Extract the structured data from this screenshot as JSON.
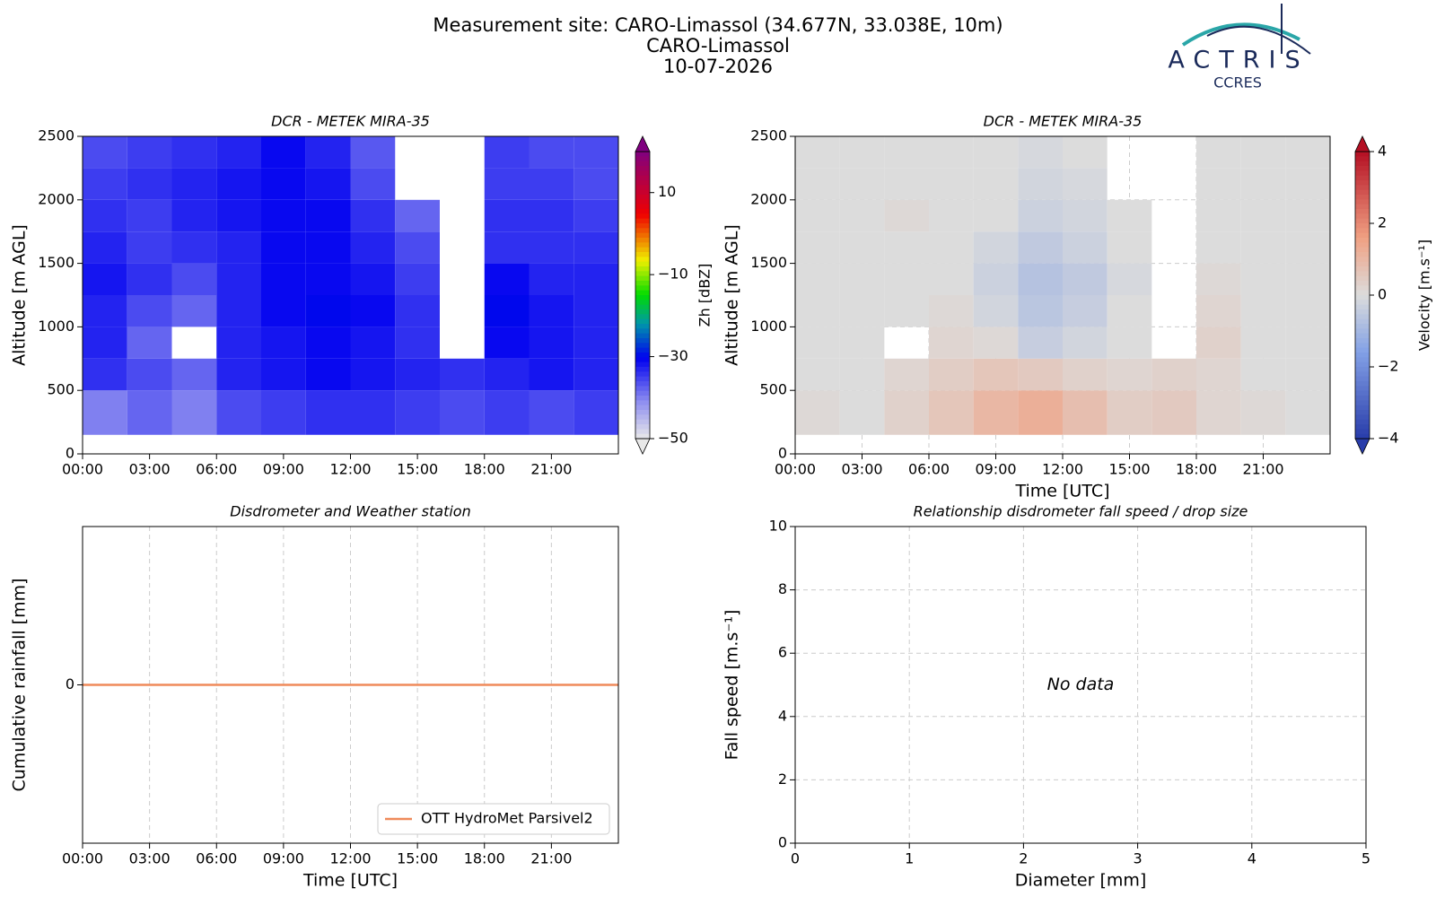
{
  "header": {
    "title_lines": [
      "Measurement site: CARO-Limassol (34.677N, 33.038E, 10m)",
      "CARO-Limassol",
      "10-07-2026"
    ],
    "logo": "ACTRIS",
    "logo_subtitle": "CCRES"
  },
  "chart_data": [
    {
      "type": "heatmap",
      "title": "DCR - METEK MIRA-35",
      "ylabel": "Altitude [m AGL]",
      "xlim": [
        0,
        24
      ],
      "xticks": [
        {
          "value": 0,
          "label": "00:00"
        },
        {
          "value": 3,
          "label": "03:00"
        },
        {
          "value": 6,
          "label": "06:00"
        },
        {
          "value": 9,
          "label": "09:00"
        },
        {
          "value": 12,
          "label": "12:00"
        },
        {
          "value": 15,
          "label": "15:00"
        },
        {
          "value": 18,
          "label": "18:00"
        },
        {
          "value": 21,
          "label": "21:00"
        }
      ],
      "ylim": [
        0,
        2500
      ],
      "yticks": [
        0,
        500,
        1000,
        1500,
        2000,
        2500
      ],
      "grid": false,
      "x_edges": [
        0,
        2,
        4,
        6,
        8,
        10,
        12,
        14,
        16,
        18,
        20,
        22,
        24
      ],
      "y_edges": [
        150,
        500,
        750,
        1000,
        1250,
        1500,
        1750,
        2000,
        2250,
        2500
      ],
      "z": [
        [
          -40,
          -38,
          -40,
          -36,
          -35,
          -34,
          -34,
          -35,
          -36,
          -35,
          -36,
          -35
        ],
        [
          -34,
          -36,
          -38,
          -33,
          -32,
          -31,
          -32,
          -33,
          -34,
          -33,
          -32,
          -33
        ],
        [
          -33,
          -38,
          null,
          -33,
          -32,
          -31,
          -32,
          -34,
          null,
          -31,
          -32,
          -33
        ],
        [
          -33,
          -36,
          -38,
          -33,
          -31,
          -30,
          -31,
          -34,
          null,
          -30,
          -32,
          -33
        ],
        [
          -32,
          -34,
          -36,
          -33,
          -31,
          -31,
          -32,
          -35,
          null,
          -31,
          -33,
          -33
        ],
        [
          -33,
          -35,
          -34,
          -33,
          -31,
          -31,
          -33,
          -36,
          null,
          -34,
          -34,
          -34
        ],
        [
          -34,
          -35,
          -33,
          -32,
          -31,
          -31,
          -34,
          -38,
          null,
          -34,
          -34,
          -35
        ],
        [
          -35,
          -34,
          -33,
          -32,
          -31,
          -32,
          -36,
          null,
          null,
          -35,
          -35,
          -36
        ],
        [
          -36,
          -35,
          -34,
          -33,
          -31,
          -33,
          -37,
          null,
          null,
          -35,
          -36,
          -36
        ]
      ],
      "colorbar": {
        "label": "Zh [dBZ]",
        "lim": [
          -50,
          20
        ],
        "ticks": [
          {
            "value": -50,
            "label": "−50"
          },
          {
            "value": -30,
            "label": "−30"
          },
          {
            "value": -10,
            "label": "−10"
          },
          10
        ],
        "colormap": "rainbow"
      }
    },
    {
      "type": "heatmap",
      "title": "DCR - METEK MIRA-35",
      "ylabel": "Altitude [m AGL]",
      "xlabel": "Time [UTC]",
      "xlim": [
        0,
        24
      ],
      "xticks": [
        {
          "value": 0,
          "label": "00:00"
        },
        {
          "value": 3,
          "label": "03:00"
        },
        {
          "value": 6,
          "label": "06:00"
        },
        {
          "value": 9,
          "label": "09:00"
        },
        {
          "value": 12,
          "label": "12:00"
        },
        {
          "value": 15,
          "label": "15:00"
        },
        {
          "value": 18,
          "label": "18:00"
        },
        {
          "value": 21,
          "label": "21:00"
        }
      ],
      "ylim": [
        0,
        2500
      ],
      "yticks": [
        0,
        500,
        1000,
        1500,
        2000,
        2500
      ],
      "grid": true,
      "x_edges": [
        0,
        2,
        4,
        6,
        8,
        10,
        12,
        14,
        16,
        18,
        20,
        22,
        24
      ],
      "y_edges": [
        150,
        500,
        750,
        1000,
        1250,
        1500,
        1750,
        2000,
        2250,
        2500
      ],
      "z": [
        [
          0.1,
          0,
          0.3,
          0.6,
          1.0,
          1.2,
          0.8,
          0.4,
          0.5,
          0.2,
          0.1,
          0
        ],
        [
          0,
          0,
          0.2,
          0.4,
          0.6,
          0.5,
          0.3,
          0.2,
          0.3,
          0.2,
          0,
          0
        ],
        [
          0,
          0,
          null,
          0.2,
          0.1,
          -0.4,
          -0.2,
          0,
          null,
          0.3,
          0,
          0
        ],
        [
          0,
          0,
          0,
          0.1,
          -0.2,
          -0.6,
          -0.4,
          0,
          null,
          0.2,
          0,
          0
        ],
        [
          0,
          0,
          0,
          0,
          -0.3,
          -0.7,
          -0.5,
          -0.1,
          null,
          0.1,
          0,
          0
        ],
        [
          0,
          0,
          0,
          0,
          -0.2,
          -0.5,
          -0.3,
          0,
          null,
          0,
          0,
          0
        ],
        [
          0,
          0,
          0.1,
          0,
          0,
          -0.3,
          -0.2,
          0,
          null,
          0,
          0,
          0
        ],
        [
          0,
          0,
          0,
          0,
          0,
          -0.2,
          -0.1,
          null,
          null,
          0,
          0,
          0
        ],
        [
          0,
          0,
          0,
          0,
          0,
          -0.1,
          0,
          null,
          null,
          0,
          0,
          0
        ]
      ],
      "colorbar": {
        "label": "Velocity [m.s⁻¹]",
        "lim": [
          -4,
          4
        ],
        "ticks": [
          {
            "value": -4,
            "label": "−4"
          },
          {
            "value": -2,
            "label": "−2"
          },
          0,
          2,
          4
        ],
        "colormap": "RdBu_r"
      }
    },
    {
      "type": "line",
      "title": "Disdrometer and Weather station",
      "ylabel": "Cumulative rainfall [mm]",
      "xlabel": "Time [UTC]",
      "xlim": [
        0,
        24
      ],
      "xticks": [
        {
          "value": 0,
          "label": "00:00"
        },
        {
          "value": 3,
          "label": "03:00"
        },
        {
          "value": 6,
          "label": "06:00"
        },
        {
          "value": 9,
          "label": "09:00"
        },
        {
          "value": 12,
          "label": "12:00"
        },
        {
          "value": 15,
          "label": "15:00"
        },
        {
          "value": 18,
          "label": "18:00"
        },
        {
          "value": 21,
          "label": "21:00"
        }
      ],
      "ylim": [
        -1,
        1
      ],
      "yticks": [
        0
      ],
      "grid": true,
      "legend": "lower right",
      "x": [
        0,
        24
      ],
      "series": [
        {
          "name": "OTT HydroMet Parsivel2",
          "color": "#ef8a5a",
          "values": [
            0,
            0
          ]
        }
      ]
    },
    {
      "type": "scatter",
      "title": "Relationship disdrometer fall speed / drop size",
      "ylabel": "Fall speed [m.s⁻¹]",
      "xlabel": "Diameter [mm]",
      "xlim": [
        0,
        5
      ],
      "xticks": [
        0,
        1,
        2,
        3,
        4,
        5
      ],
      "ylim": [
        0,
        10
      ],
      "yticks": [
        0,
        2,
        4,
        6,
        8,
        10
      ],
      "grid": true,
      "x": [],
      "y": [],
      "annotation": "No data"
    }
  ]
}
